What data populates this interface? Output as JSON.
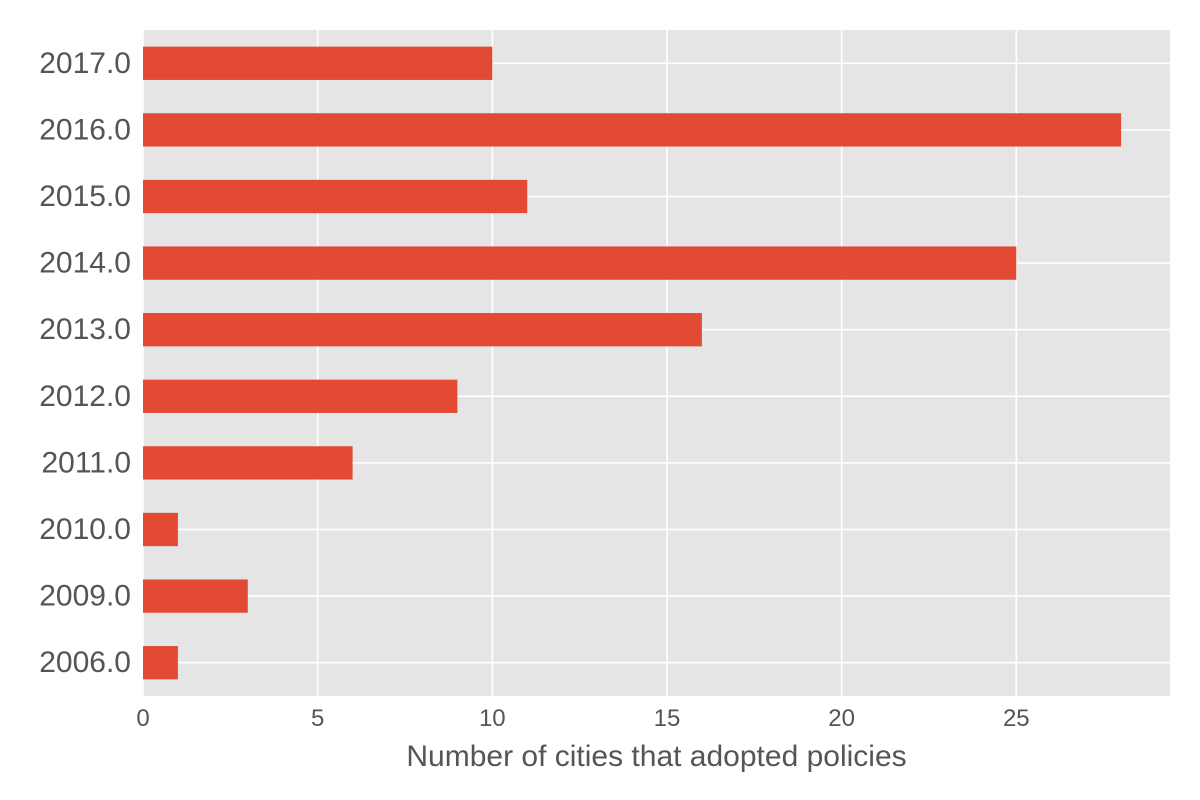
{
  "chart_data": {
    "type": "bar",
    "orientation": "horizontal",
    "categories": [
      "2006.0",
      "2009.0",
      "2010.0",
      "2011.0",
      "2012.0",
      "2013.0",
      "2014.0",
      "2015.0",
      "2016.0",
      "2017.0"
    ],
    "values": [
      1,
      3,
      1,
      6,
      9,
      16,
      25,
      11,
      28,
      10
    ],
    "title": "",
    "xlabel": "Number of cities that adopted policies",
    "ylabel": "",
    "xlim": [
      0,
      29.4
    ],
    "xticks": [
      0,
      5,
      10,
      15,
      20,
      25
    ],
    "xtick_labels": [
      "0",
      "5",
      "10",
      "15",
      "20",
      "25"
    ],
    "grid": true,
    "legend": "none",
    "colors": {
      "bar": "#E24A33",
      "plot_background": "#E5E5E5",
      "grid": "#FFFFFF",
      "text": "#555555"
    }
  }
}
